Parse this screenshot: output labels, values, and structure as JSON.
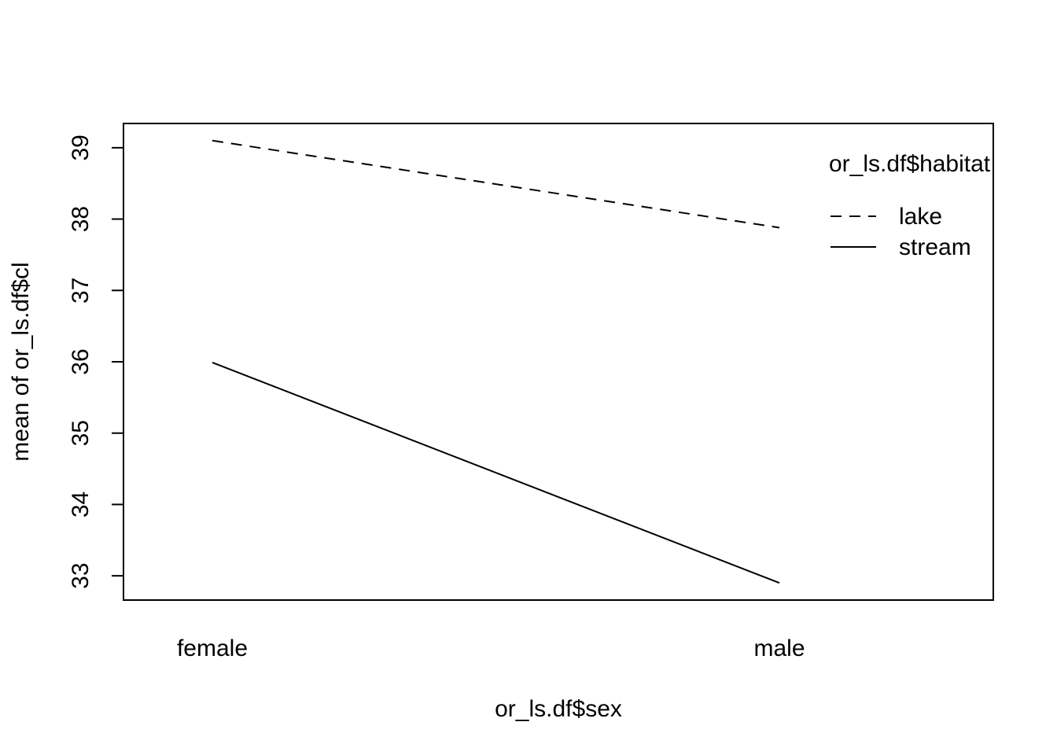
{
  "chart_data": {
    "type": "line",
    "title": "",
    "xlabel": "or_ls.df$sex",
    "ylabel": "mean of  or_ls.df$cl",
    "categories": [
      "female",
      "male"
    ],
    "series": [
      {
        "name": "lake",
        "values": [
          39.1,
          37.88
        ],
        "line_style": "dashed"
      },
      {
        "name": "stream",
        "values": [
          35.99,
          32.9
        ],
        "line_style": "solid"
      }
    ],
    "y_ticks": [
      33,
      34,
      35,
      36,
      37,
      38,
      39
    ],
    "ylim": [
      32.66,
      39.34
    ],
    "legend": {
      "title": "or_ls.df$habitat",
      "placement": "top-right"
    },
    "grid": false,
    "color": "#000000"
  }
}
